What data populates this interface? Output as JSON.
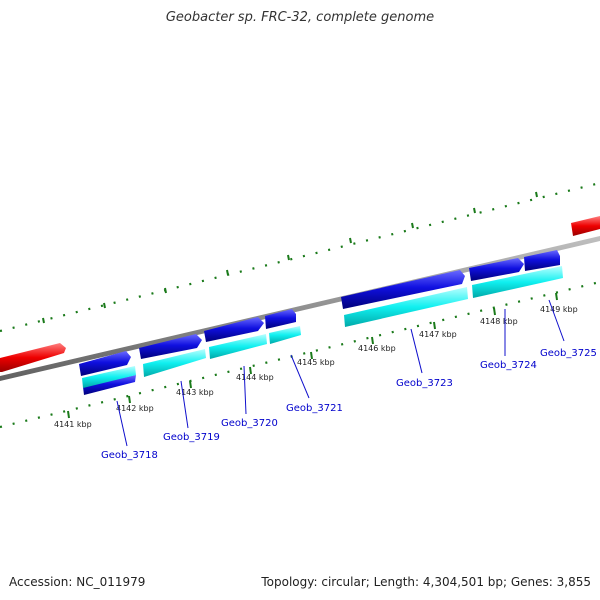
{
  "title": "Geobacter sp. FRC-32, complete genome",
  "footer": {
    "accession": "Accession: NC_011979",
    "topology": "Topology: circular; Length: 4,304,501 bp; Genes: 3,855"
  },
  "scale_labels": [
    "4141 kbp",
    "4142 kbp",
    "4143 kbp",
    "4144 kbp",
    "4145 kbp",
    "4146 kbp",
    "4147 kbp",
    "4148 kbp",
    "4149 kbp"
  ],
  "gene_labels": [
    "Geob_3718",
    "Geob_3719",
    "Geob_3720",
    "Geob_3721",
    "Geob_3723",
    "Geob_3724",
    "Geob_3725"
  ],
  "colors": {
    "backbone": "#888888",
    "cds": "#0000ee",
    "gene": "#00ffff",
    "rrna": "#ff0000",
    "tick": "#1a7a1a",
    "label": "#0000cc"
  }
}
